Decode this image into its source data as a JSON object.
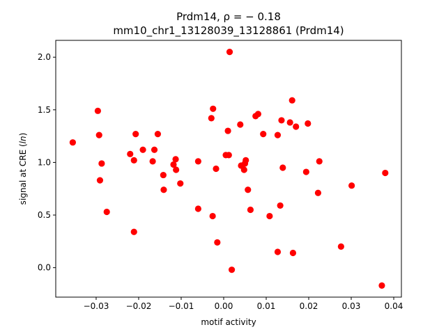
{
  "chart_data": {
    "type": "scatter",
    "title_line1": "Prdm14, ρ = − 0.18",
    "title_line2": "mm10_chr1_13128039_13128861 (Prdm14)",
    "xlabel": "motif activity",
    "ylabel": "signal at CRE (ln)",
    "xlim": [
      -0.0395,
      0.0418
    ],
    "ylim": [
      -0.28,
      2.16
    ],
    "xticks": [
      -0.03,
      -0.02,
      -0.01,
      0.0,
      0.01,
      0.02,
      0.03,
      0.04
    ],
    "xtick_labels": [
      "−0.03",
      "−0.02",
      "−0.01",
      "0.00",
      "0.01",
      "0.02",
      "0.03",
      "0.04"
    ],
    "yticks": [
      0.0,
      0.5,
      1.0,
      1.5,
      2.0
    ],
    "ytick_labels": [
      "0.0",
      "0.5",
      "1.0",
      "1.5",
      "2.0"
    ],
    "grid": false,
    "marker_color": "#ff0000",
    "points": [
      {
        "x": -0.0355,
        "y": 1.19
      },
      {
        "x": -0.0296,
        "y": 1.49
      },
      {
        "x": -0.0293,
        "y": 1.26
      },
      {
        "x": -0.0291,
        "y": 0.83
      },
      {
        "x": -0.0287,
        "y": 0.99
      },
      {
        "x": -0.0275,
        "y": 0.53
      },
      {
        "x": -0.022,
        "y": 1.08
      },
      {
        "x": -0.0211,
        "y": 1.02
      },
      {
        "x": -0.0211,
        "y": 0.34
      },
      {
        "x": -0.0207,
        "y": 1.27
      },
      {
        "x": -0.019,
        "y": 1.12
      },
      {
        "x": -0.0167,
        "y": 1.01
      },
      {
        "x": -0.0163,
        "y": 1.12
      },
      {
        "x": -0.0155,
        "y": 1.27
      },
      {
        "x": -0.0142,
        "y": 0.88
      },
      {
        "x": -0.0141,
        "y": 0.74
      },
      {
        "x": -0.0118,
        "y": 0.98
      },
      {
        "x": -0.0113,
        "y": 1.03
      },
      {
        "x": -0.0112,
        "y": 0.93
      },
      {
        "x": -0.0102,
        "y": 0.8
      },
      {
        "x": -0.006,
        "y": 1.01
      },
      {
        "x": -0.006,
        "y": 0.56
      },
      {
        "x": -0.0029,
        "y": 1.42
      },
      {
        "x": -0.0025,
        "y": 1.51
      },
      {
        "x": -0.0026,
        "y": 0.49
      },
      {
        "x": -0.0018,
        "y": 0.94
      },
      {
        "x": -0.0015,
        "y": 0.24
      },
      {
        "x": 0.0005,
        "y": 1.07
      },
      {
        "x": 0.001,
        "y": 1.3
      },
      {
        "x": 0.0012,
        "y": 1.07
      },
      {
        "x": 0.0014,
        "y": 2.05
      },
      {
        "x": 0.0019,
        "y": -0.02
      },
      {
        "x": 0.0039,
        "y": 1.36
      },
      {
        "x": 0.0041,
        "y": 0.97
      },
      {
        "x": 0.0048,
        "y": 0.93
      },
      {
        "x": 0.005,
        "y": 0.99
      },
      {
        "x": 0.0052,
        "y": 1.02
      },
      {
        "x": 0.0057,
        "y": 0.74
      },
      {
        "x": 0.0063,
        "y": 0.55
      },
      {
        "x": 0.0075,
        "y": 1.44
      },
      {
        "x": 0.0081,
        "y": 1.46
      },
      {
        "x": 0.0093,
        "y": 1.27
      },
      {
        "x": 0.0108,
        "y": 0.49
      },
      {
        "x": 0.0127,
        "y": 1.26
      },
      {
        "x": 0.0127,
        "y": 0.15
      },
      {
        "x": 0.0133,
        "y": 0.59
      },
      {
        "x": 0.0136,
        "y": 1.4
      },
      {
        "x": 0.0139,
        "y": 0.95
      },
      {
        "x": 0.0156,
        "y": 1.38
      },
      {
        "x": 0.0161,
        "y": 1.59
      },
      {
        "x": 0.0163,
        "y": 0.14
      },
      {
        "x": 0.017,
        "y": 1.34
      },
      {
        "x": 0.0194,
        "y": 0.91
      },
      {
        "x": 0.0198,
        "y": 1.37
      },
      {
        "x": 0.0222,
        "y": 0.71
      },
      {
        "x": 0.0225,
        "y": 1.01
      },
      {
        "x": 0.0276,
        "y": 0.2
      },
      {
        "x": 0.0301,
        "y": 0.78
      },
      {
        "x": 0.0372,
        "y": -0.17
      },
      {
        "x": 0.038,
        "y": 0.9
      }
    ]
  }
}
